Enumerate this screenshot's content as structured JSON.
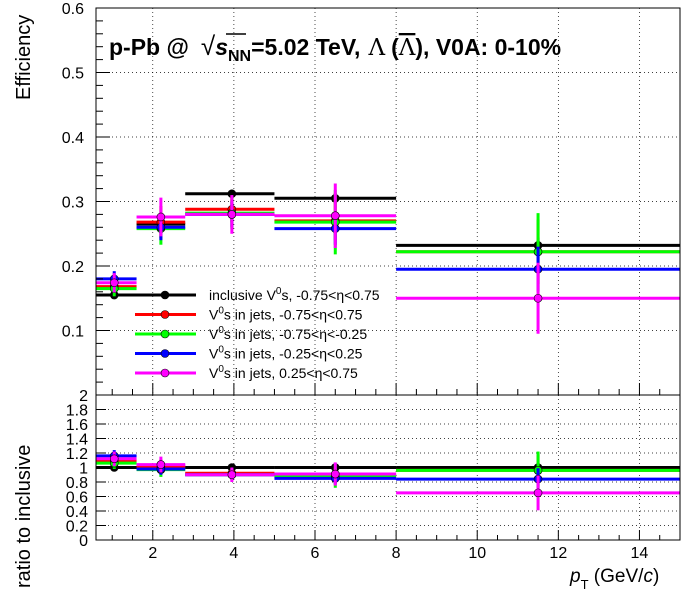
{
  "chart_data": [
    {
      "type": "scatter",
      "panel": "efficiency",
      "title": {
        "prefix": "p-Pb @",
        "sqrt_s": "s",
        "sqrt_s_sub": "NN",
        "energy": "=5.02 TeV,",
        "lambda": "Λ",
        "lambda_bar": "Λ",
        "selection": "), V0A: 0-10%"
      },
      "ylabel": "Efficiency",
      "xlim": [
        0.6,
        15
      ],
      "ylim": [
        0,
        0.6
      ],
      "y_ticks": [
        {
          "value": 0.1,
          "label": "0.1"
        },
        {
          "value": 0.2,
          "label": "0.2"
        },
        {
          "value": 0.3,
          "label": "0.3"
        },
        {
          "value": 0.4,
          "label": "0.4"
        },
        {
          "value": 0.5,
          "label": "0.5"
        },
        {
          "value": 0.6,
          "label": "0.6"
        }
      ],
      "grid": true,
      "legend_position": "bottom-left",
      "legend": [
        {
          "series": 0,
          "pre": "inclusive V",
          "sup": "0",
          "post": "s, -0.75<η<0.75"
        },
        {
          "series": 1,
          "pre": "V",
          "sup": "0",
          "post": "s in jets, -0.75<η<0.75"
        },
        {
          "series": 2,
          "pre": "V",
          "sup": "0",
          "post": "s in jets, -0.75<η<-0.25"
        },
        {
          "series": 3,
          "pre": "V",
          "sup": "0",
          "post": "s in jets, -0.25<η<0.25"
        },
        {
          "series": 4,
          "pre": "V",
          "sup": "0",
          "post": "s in jets, 0.25<η<0.75"
        }
      ],
      "series": [
        {
          "color": "#000000",
          "points": [
            {
              "xlo": 0.6,
              "xhi": 1.6,
              "x": 1.05,
              "y": 0.155,
              "err": 0.005
            },
            {
              "xlo": 1.6,
              "xhi": 2.8,
              "x": 2.2,
              "y": 0.265,
              "err": 0.008
            },
            {
              "xlo": 2.8,
              "xhi": 5.0,
              "x": 3.95,
              "y": 0.312,
              "err": 0.006
            },
            {
              "xlo": 5.0,
              "xhi": 8.0,
              "x": 6.5,
              "y": 0.305,
              "err": 0.008
            },
            {
              "xlo": 8.0,
              "xhi": 15.0,
              "x": 11.5,
              "y": 0.232,
              "err": 0.012
            }
          ]
        },
        {
          "color": "#ff0000",
          "points": [
            {
              "xlo": 0.6,
              "xhi": 1.6,
              "x": 1.05,
              "y": 0.168,
              "err": 0.01
            },
            {
              "xlo": 1.6,
              "xhi": 2.8,
              "x": 2.2,
              "y": 0.268,
              "err": 0.025
            },
            {
              "xlo": 2.8,
              "xhi": 5.0,
              "x": 3.95,
              "y": 0.288,
              "err": 0.02
            },
            {
              "xlo": 5.0,
              "xhi": 8.0,
              "x": 6.5,
              "y": 0.27,
              "err": 0.03
            },
            {
              "xlo": 8.0,
              "xhi": 15.0,
              "x": 11.5,
              "y": 0.222,
              "err": 0.05
            }
          ]
        },
        {
          "color": "#00ff00",
          "points": [
            {
              "xlo": 0.6,
              "xhi": 1.6,
              "x": 1.05,
              "y": 0.165,
              "err": 0.012
            },
            {
              "xlo": 1.6,
              "xhi": 2.8,
              "x": 2.2,
              "y": 0.258,
              "err": 0.025
            },
            {
              "xlo": 2.8,
              "xhi": 5.0,
              "x": 3.95,
              "y": 0.282,
              "err": 0.025
            },
            {
              "xlo": 5.0,
              "xhi": 8.0,
              "x": 6.5,
              "y": 0.268,
              "err": 0.05
            },
            {
              "xlo": 8.0,
              "xhi": 15.0,
              "x": 11.5,
              "y": 0.222,
              "err": 0.06
            }
          ]
        },
        {
          "color": "#0000ff",
          "points": [
            {
              "xlo": 0.6,
              "xhi": 1.6,
              "x": 1.05,
              "y": 0.18,
              "err": 0.012
            },
            {
              "xlo": 1.6,
              "xhi": 2.8,
              "x": 2.2,
              "y": 0.26,
              "err": 0.02
            },
            {
              "xlo": 2.8,
              "xhi": 5.0,
              "x": 3.95,
              "y": 0.28,
              "err": 0.02
            },
            {
              "xlo": 5.0,
              "xhi": 8.0,
              "x": 6.5,
              "y": 0.258,
              "err": 0.025
            },
            {
              "xlo": 8.0,
              "xhi": 15.0,
              "x": 11.5,
              "y": 0.195,
              "err": 0.035
            }
          ]
        },
        {
          "color": "#ff00ff",
          "points": [
            {
              "xlo": 0.6,
              "xhi": 1.6,
              "x": 1.05,
              "y": 0.174,
              "err": 0.015
            },
            {
              "xlo": 1.6,
              "xhi": 2.8,
              "x": 2.2,
              "y": 0.276,
              "err": 0.03
            },
            {
              "xlo": 2.8,
              "xhi": 5.0,
              "x": 3.95,
              "y": 0.28,
              "err": 0.03
            },
            {
              "xlo": 5.0,
              "xhi": 8.0,
              "x": 6.5,
              "y": 0.278,
              "err": 0.05
            },
            {
              "xlo": 8.0,
              "xhi": 15.0,
              "x": 11.5,
              "y": 0.15,
              "err": 0.055
            }
          ]
        }
      ]
    },
    {
      "type": "scatter",
      "panel": "ratio",
      "ylabel": "ratio to inclusive",
      "xlabel": {
        "p": "p",
        "sub": "T",
        "open": " (GeV/",
        "c": "c",
        "close": ")"
      },
      "xlim": [
        0.6,
        15
      ],
      "ylim": [
        0,
        2
      ],
      "x_ticks": [
        {
          "value": 2,
          "label": "2"
        },
        {
          "value": 4,
          "label": "4"
        },
        {
          "value": 6,
          "label": "6"
        },
        {
          "value": 8,
          "label": "8"
        },
        {
          "value": 10,
          "label": "10"
        },
        {
          "value": 12,
          "label": "12"
        },
        {
          "value": 14,
          "label": "14"
        }
      ],
      "y_ticks": [
        {
          "value": 0,
          "label": "0"
        },
        {
          "value": 0.2,
          "label": "0.2"
        },
        {
          "value": 0.4,
          "label": "0.4"
        },
        {
          "value": 0.6,
          "label": "0.6"
        },
        {
          "value": 0.8,
          "label": "0.8"
        },
        {
          "value": 1.0,
          "label": "1"
        },
        {
          "value": 1.2,
          "label": "1.2"
        },
        {
          "value": 1.4,
          "label": "1.4"
        },
        {
          "value": 1.6,
          "label": "1.6"
        },
        {
          "value": 1.8,
          "label": "1.8"
        },
        {
          "value": 2.0,
          "label": "2"
        }
      ],
      "grid": true,
      "series": [
        {
          "color": "#000000",
          "points": [
            {
              "xlo": 0.6,
              "xhi": 1.6,
              "x": 1.05,
              "y": 1.0,
              "err": 0.03
            },
            {
              "xlo": 1.6,
              "xhi": 2.8,
              "x": 2.2,
              "y": 1.0,
              "err": 0.03
            },
            {
              "xlo": 2.8,
              "xhi": 5.0,
              "x": 3.95,
              "y": 1.0,
              "err": 0.02
            },
            {
              "xlo": 5.0,
              "xhi": 8.0,
              "x": 6.5,
              "y": 1.0,
              "err": 0.03
            },
            {
              "xlo": 8.0,
              "xhi": 15.0,
              "x": 11.5,
              "y": 1.0,
              "err": 0.05
            }
          ]
        },
        {
          "color": "#ff0000",
          "points": [
            {
              "xlo": 0.6,
              "xhi": 1.6,
              "x": 1.05,
              "y": 1.09,
              "err": 0.06
            },
            {
              "xlo": 1.6,
              "xhi": 2.8,
              "x": 2.2,
              "y": 1.02,
              "err": 0.09
            },
            {
              "xlo": 2.8,
              "xhi": 5.0,
              "x": 3.95,
              "y": 0.92,
              "err": 0.07
            },
            {
              "xlo": 5.0,
              "xhi": 8.0,
              "x": 6.5,
              "y": 0.89,
              "err": 0.1
            },
            {
              "xlo": 8.0,
              "xhi": 15.0,
              "x": 11.5,
              "y": 0.96,
              "err": 0.22
            }
          ]
        },
        {
          "color": "#00ff00",
          "points": [
            {
              "xlo": 0.6,
              "xhi": 1.6,
              "x": 1.05,
              "y": 1.06,
              "err": 0.08
            },
            {
              "xlo": 1.6,
              "xhi": 2.8,
              "x": 2.2,
              "y": 0.97,
              "err": 0.1
            },
            {
              "xlo": 2.8,
              "xhi": 5.0,
              "x": 3.95,
              "y": 0.9,
              "err": 0.08
            },
            {
              "xlo": 5.0,
              "xhi": 8.0,
              "x": 6.5,
              "y": 0.88,
              "err": 0.16
            },
            {
              "xlo": 8.0,
              "xhi": 15.0,
              "x": 11.5,
              "y": 0.96,
              "err": 0.26
            }
          ]
        },
        {
          "color": "#0000ff",
          "points": [
            {
              "xlo": 0.6,
              "xhi": 1.6,
              "x": 1.05,
              "y": 1.16,
              "err": 0.08
            },
            {
              "xlo": 1.6,
              "xhi": 2.8,
              "x": 2.2,
              "y": 0.98,
              "err": 0.08
            },
            {
              "xlo": 2.8,
              "xhi": 5.0,
              "x": 3.95,
              "y": 0.9,
              "err": 0.07
            },
            {
              "xlo": 5.0,
              "xhi": 8.0,
              "x": 6.5,
              "y": 0.85,
              "err": 0.08
            },
            {
              "xlo": 8.0,
              "xhi": 15.0,
              "x": 11.5,
              "y": 0.84,
              "err": 0.15
            }
          ]
        },
        {
          "color": "#ff00ff",
          "points": [
            {
              "xlo": 0.6,
              "xhi": 1.6,
              "x": 1.05,
              "y": 1.12,
              "err": 0.1
            },
            {
              "xlo": 1.6,
              "xhi": 2.8,
              "x": 2.2,
              "y": 1.04,
              "err": 0.11
            },
            {
              "xlo": 2.8,
              "xhi": 5.0,
              "x": 3.95,
              "y": 0.9,
              "err": 0.1
            },
            {
              "xlo": 5.0,
              "xhi": 8.0,
              "x": 6.5,
              "y": 0.91,
              "err": 0.16
            },
            {
              "xlo": 8.0,
              "xhi": 15.0,
              "x": 11.5,
              "y": 0.65,
              "err": 0.24
            }
          ]
        }
      ]
    }
  ]
}
